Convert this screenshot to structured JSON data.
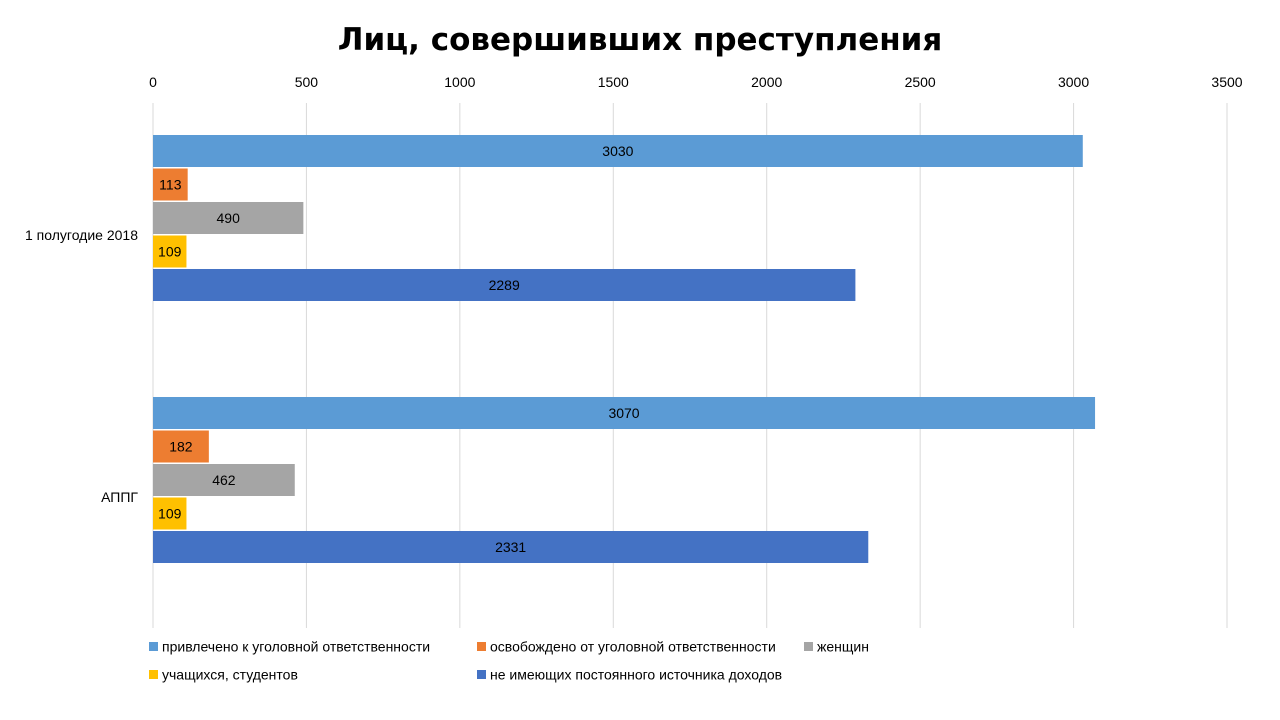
{
  "chart_data": {
    "type": "bar",
    "orientation": "horizontal",
    "title": "Лиц, совершивших преступления",
    "xlabel": "",
    "ylabel": "",
    "xlim": [
      0,
      3500
    ],
    "ticks": [
      0,
      500,
      1000,
      1500,
      2000,
      2500,
      3000,
      3500
    ],
    "tick_labels": [
      "0",
      "500",
      "1000",
      "1500",
      "2000",
      "2500",
      "3000",
      "3500"
    ],
    "axis_position": "top",
    "grid": true,
    "legend_position": "bottom",
    "categories": [
      "1 полугодие 2018",
      "АППГ"
    ],
    "series": [
      {
        "name": "привлечено к уголовной ответственности",
        "color": "#5B9BD5",
        "values": [
          3030,
          3070
        ]
      },
      {
        "name": "освобождено от уголовной ответственности",
        "color": "#ED7D31",
        "values": [
          113,
          182
        ]
      },
      {
        "name": "женщин",
        "color": "#A5A5A5",
        "values": [
          490,
          462
        ]
      },
      {
        "name": "учащихся, студентов",
        "color": "#FFC000",
        "values": [
          109,
          109
        ]
      },
      {
        "name": "не имеющих постоянного источника доходов",
        "color": "#4472C4",
        "values": [
          2289,
          2331
        ]
      }
    ]
  }
}
